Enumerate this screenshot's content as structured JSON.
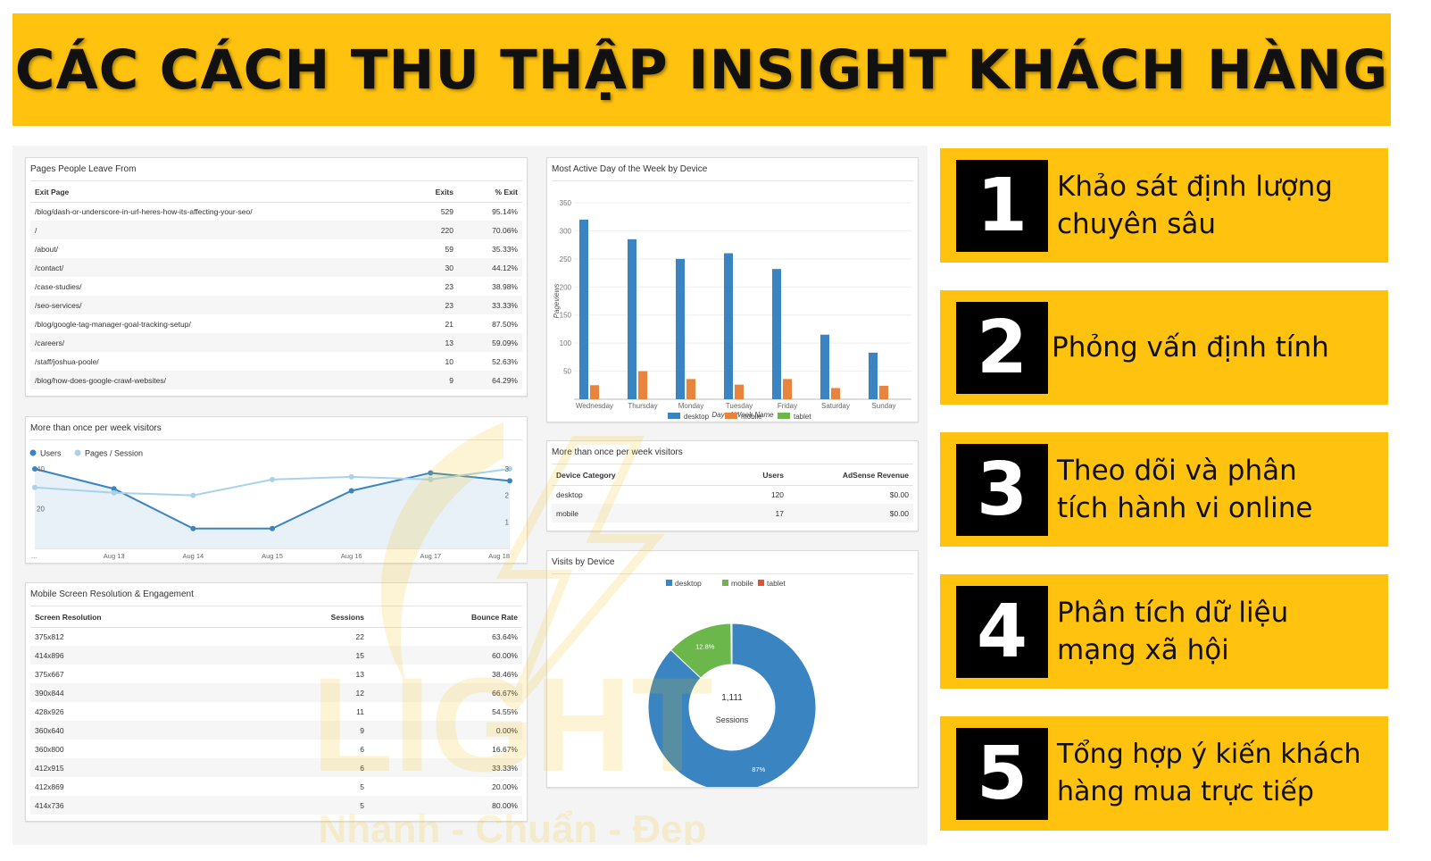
{
  "title": "CÁC CÁCH THU THẬP INSIGHT KHÁCH HÀNG",
  "watermark": {
    "brand": "LIGHT",
    "slogan": "Nhanh - Chuẩn - Đẹp"
  },
  "steps": [
    {
      "number": "1",
      "text": "Khảo sát định lượng\nchuyên sâu"
    },
    {
      "number": "2",
      "text": "Phỏng vấn định tính"
    },
    {
      "number": "3",
      "text": "Theo dõi và phân\ntích hành vi online"
    },
    {
      "number": "4",
      "text": "Phân tích dữ liệu\nmạng xã hội"
    },
    {
      "number": "5",
      "text": "Tổng hợp ý kiến khách\nhàng mua trực tiếp"
    }
  ],
  "exit_pages": {
    "title": "Pages People Leave From",
    "headers": [
      "Exit Page",
      "Exits",
      "% Exit"
    ],
    "rows": [
      [
        "/blog/dash-or-underscore-in-url-heres-how-its-affecting-your-seo/",
        "529",
        "95.14%"
      ],
      [
        "/",
        "220",
        "70.06%"
      ],
      [
        "/about/",
        "59",
        "35.33%"
      ],
      [
        "/contact/",
        "30",
        "44.12%"
      ],
      [
        "/case-studies/",
        "23",
        "38.98%"
      ],
      [
        "/seo-services/",
        "23",
        "33.33%"
      ],
      [
        "/blog/google-tag-manager-goal-tracking-setup/",
        "21",
        "87.50%"
      ],
      [
        "/careers/",
        "13",
        "59.09%"
      ],
      [
        "/staff/joshua-poole/",
        "10",
        "52.63%"
      ],
      [
        "/blog/how-does-google-crawl-websites/",
        "9",
        "64.29%"
      ]
    ]
  },
  "chart_data": [
    {
      "type": "line",
      "title": "More than once per week visitors",
      "x": [
        "...",
        "Aug 13",
        "Aug 14",
        "Aug 15",
        "Aug 16",
        "Aug 17",
        "Aug 18"
      ],
      "series": [
        {
          "name": "Users",
          "color": "#3a84c1",
          "values": [
            40,
            30,
            10,
            10,
            29,
            38,
            34
          ]
        },
        {
          "name": "Pages / Session",
          "color": "#a8d2ea",
          "values": [
            2.3,
            2.1,
            2.0,
            2.6,
            2.7,
            2.6,
            3.0
          ]
        }
      ],
      "left_ticks": [
        {
          "label": "40",
          "value": 40
        },
        {
          "label": "20",
          "value": 20
        }
      ],
      "right_ticks": [
        {
          "label": "3",
          "value": 3
        },
        {
          "label": "2",
          "value": 2
        },
        {
          "label": "1",
          "value": 1
        }
      ],
      "left_range": [
        0,
        40
      ],
      "right_range": [
        0,
        3
      ],
      "legend": "top-left"
    },
    {
      "type": "bar",
      "title": "Most Active Day of the Week by Device",
      "categories": [
        "Wednesday",
        "Thursday",
        "Monday",
        "Tuesday",
        "Friday",
        "Saturday",
        "Sunday"
      ],
      "series": [
        {
          "name": "desktop",
          "color": "#3a84c1",
          "values": [
            320,
            285,
            250,
            260,
            232,
            115,
            83
          ]
        },
        {
          "name": "mobile",
          "color": "#e8843d",
          "values": [
            25,
            50,
            36,
            26,
            36,
            20,
            24
          ]
        },
        {
          "name": "tablet",
          "color": "#6cb74b",
          "values": [
            0,
            0,
            0,
            0,
            0,
            0,
            0
          ]
        }
      ],
      "xlabel": "Day of Week Name",
      "ylabel": "Pageviews",
      "yticks": [
        50,
        100,
        150,
        200,
        250,
        300,
        350
      ],
      "ylim": [
        0,
        350
      ],
      "legend": "bottom"
    },
    {
      "type": "pie",
      "title": "Visits by Device",
      "categories": [
        "desktop",
        "mobile",
        "tablet"
      ],
      "values": [
        87,
        12.8,
        0.2
      ],
      "labels": [
        "87%",
        "12.8%",
        ""
      ],
      "colors": [
        "#3a84c1",
        "#6cb74b",
        "#e0532e"
      ],
      "center_value": "1,111",
      "center_label": "Sessions",
      "legend": "top"
    }
  ],
  "device_table": {
    "title": "More than once per week visitors",
    "headers": [
      "Device Category",
      "Users",
      "AdSense Revenue"
    ],
    "rows": [
      [
        "desktop",
        "120",
        "$0.00"
      ],
      [
        "mobile",
        "17",
        "$0.00"
      ]
    ]
  },
  "resolution_table": {
    "title": "Mobile Screen Resolution & Engagement",
    "headers": [
      "Screen Resolution",
      "Sessions",
      "Bounce Rate"
    ],
    "rows": [
      [
        "375x812",
        "22",
        "63.64%"
      ],
      [
        "414x896",
        "15",
        "60.00%"
      ],
      [
        "375x667",
        "13",
        "38.46%"
      ],
      [
        "390x844",
        "12",
        "66.67%"
      ],
      [
        "428x926",
        "11",
        "54.55%"
      ],
      [
        "360x640",
        "9",
        "0.00%"
      ],
      [
        "360x800",
        "6",
        "16.67%"
      ],
      [
        "412x915",
        "6",
        "33.33%"
      ],
      [
        "412x869",
        "5",
        "20.00%"
      ],
      [
        "414x736",
        "5",
        "80.00%"
      ]
    ]
  }
}
